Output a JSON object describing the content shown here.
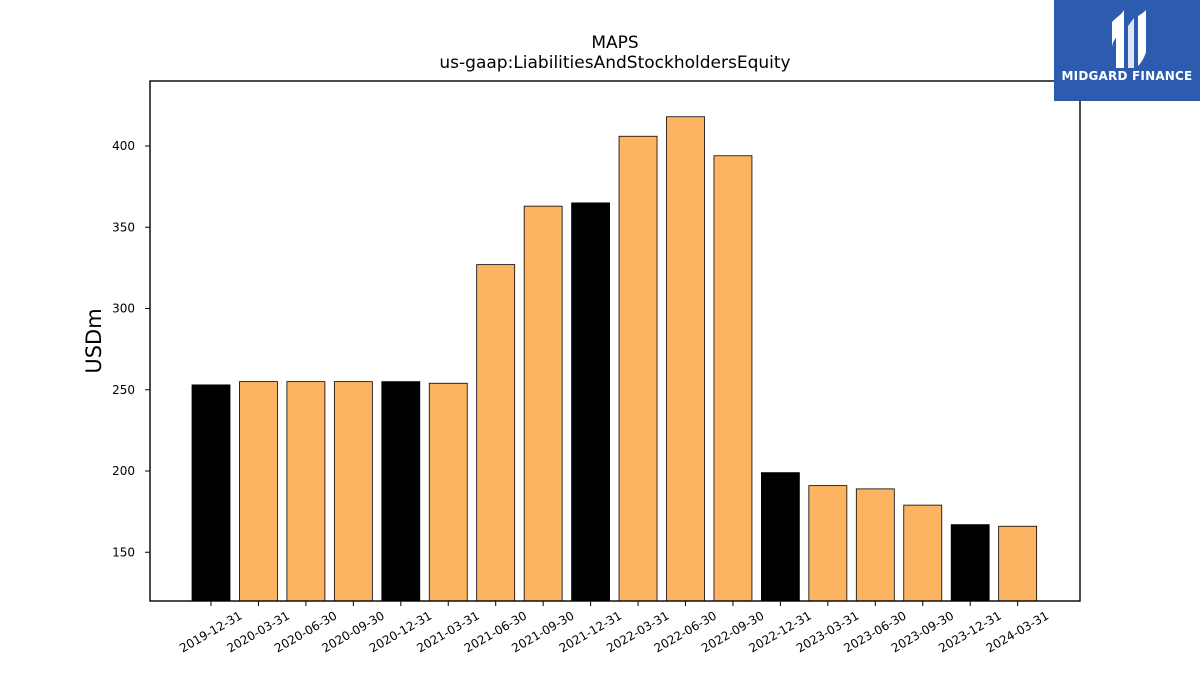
{
  "chart_data": {
    "type": "bar",
    "title": "MAPS",
    "subtitle": "us-gaap:LiabilitiesAndStockholdersEquity",
    "ylabel": "USDm",
    "xlabel": "",
    "ylim": [
      120,
      440
    ],
    "yticks": [
      150,
      200,
      250,
      300,
      350,
      400
    ],
    "grid": false,
    "categories": [
      "2019-12-31",
      "2020-03-31",
      "2020-06-30",
      "2020-09-30",
      "2020-12-31",
      "2021-03-31",
      "2021-06-30",
      "2021-09-30",
      "2021-12-31",
      "2022-03-31",
      "2022-06-30",
      "2022-09-30",
      "2022-12-31",
      "2023-03-31",
      "2023-06-30",
      "2023-09-30",
      "2023-12-31",
      "2024-03-31"
    ],
    "values": [
      253,
      255,
      255,
      255,
      255,
      254,
      327,
      363,
      365,
      406,
      418,
      394,
      199,
      191,
      189,
      179,
      167,
      166
    ],
    "colors": [
      "#000000",
      "#fdb462",
      "#fdb462",
      "#fdb462",
      "#000000",
      "#fdb462",
      "#fdb462",
      "#fdb462",
      "#000000",
      "#fdb462",
      "#fdb462",
      "#fdb462",
      "#000000",
      "#fdb462",
      "#fdb462",
      "#fdb462",
      "#000000",
      "#fdb462"
    ]
  },
  "logo": {
    "text": "MIDGARD FINANCE",
    "background": "#2d5bb0",
    "icon": "midgard-logo-icon"
  }
}
